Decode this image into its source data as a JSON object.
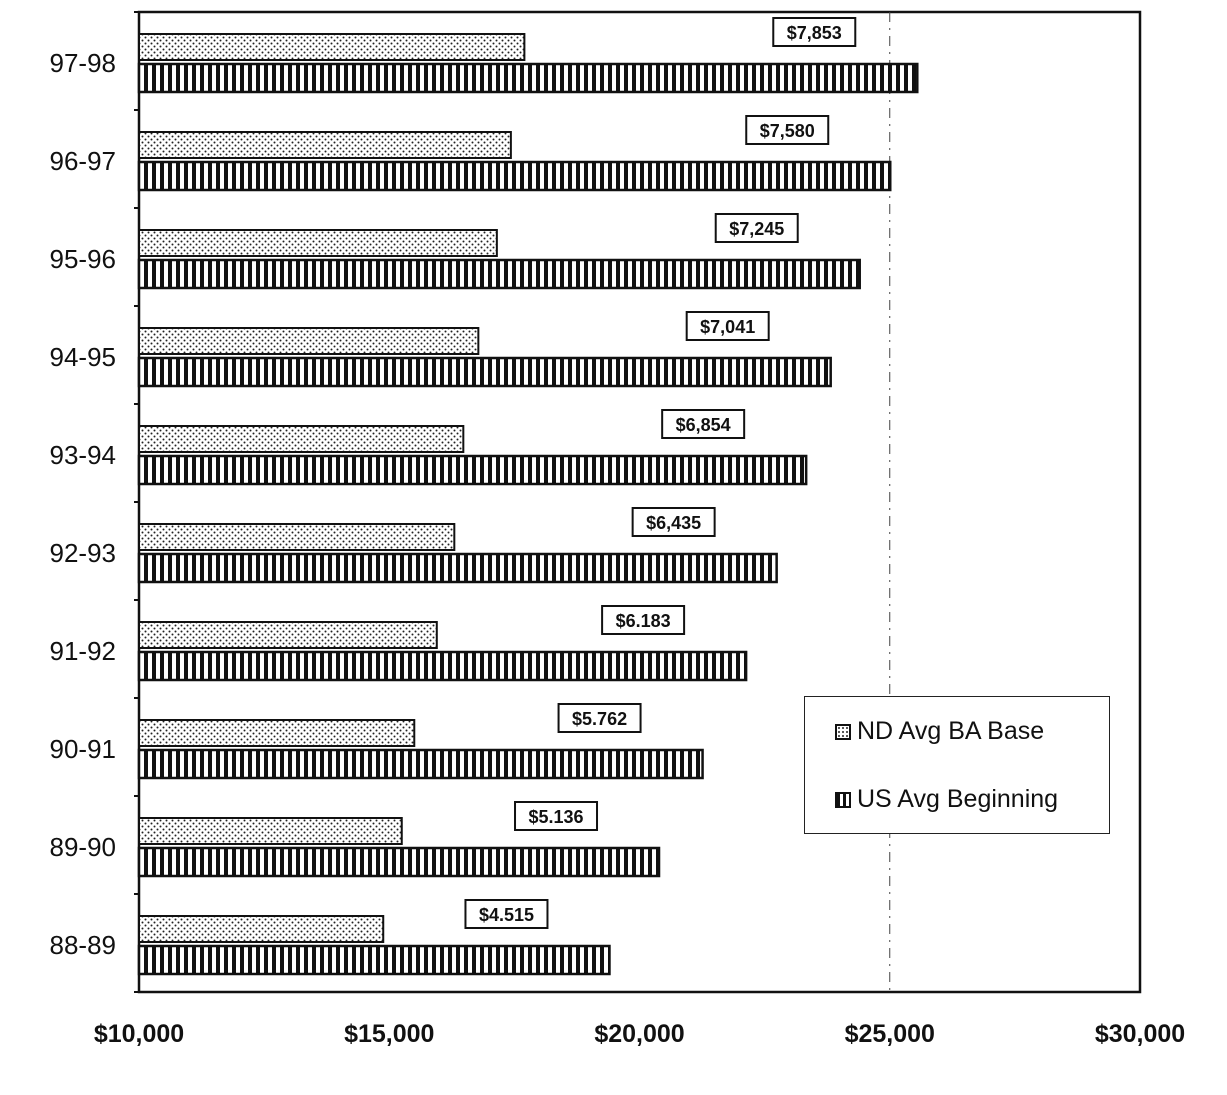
{
  "chart_data": {
    "type": "bar",
    "orientation": "horizontal",
    "categories": [
      "97-98",
      "96-97",
      "95-96",
      "94-95",
      "93-94",
      "92-93",
      "91-92",
      "90-91",
      "89-90",
      "88-89"
    ],
    "series": [
      {
        "name": "ND Avg BA Base",
        "pattern": "dotted",
        "values": [
          17700,
          17430,
          17150,
          16780,
          16480,
          16300,
          15950,
          15500,
          15250,
          14880
        ]
      },
      {
        "name": "US Avg Beginning",
        "pattern": "vertical-stripes",
        "values": [
          25550,
          25010,
          24400,
          23820,
          23330,
          22740,
          22130,
          21260,
          20390,
          19400
        ]
      }
    ],
    "difference_labels": [
      "$7,853",
      "$7,580",
      "$7,245",
      "$7,041",
      "$6,854",
      "$6,435",
      "$6.183",
      "$5.762",
      "$5.136",
      "$4.515"
    ],
    "xlim": [
      10000,
      30000
    ],
    "x_ticks": [
      10000,
      15000,
      20000,
      25000,
      30000
    ],
    "x_tick_labels": [
      "$10,000",
      "$15,000",
      "$20,000",
      "$25,000",
      "$30,000"
    ],
    "title": "",
    "xlabel": "",
    "ylabel": "",
    "gridline_at": 25000,
    "legend_position": "bottom-right",
    "colors": {
      "ink": "#111111",
      "background": "#ffffff"
    }
  }
}
